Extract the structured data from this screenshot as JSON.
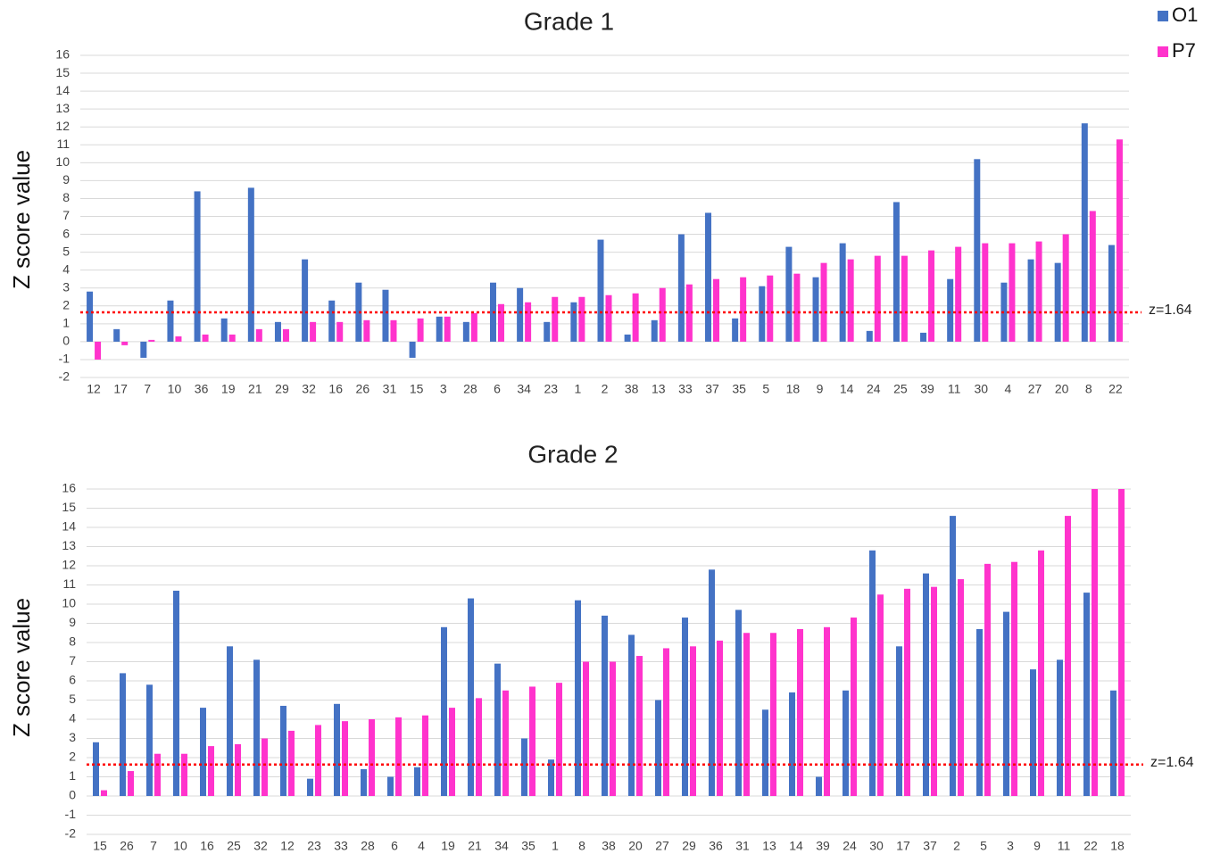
{
  "chart_data": [
    {
      "type": "bar",
      "title": "Grade 1",
      "y_label": "Z score value",
      "categories": [
        "12",
        "17",
        "7",
        "10",
        "36",
        "19",
        "21",
        "29",
        "32",
        "16",
        "26",
        "31",
        "15",
        "3",
        "28",
        "6",
        "34",
        "23",
        "1",
        "2",
        "38",
        "13",
        "33",
        "37",
        "35",
        "5",
        "18",
        "9",
        "14",
        "24",
        "25",
        "39",
        "11",
        "30",
        "4",
        "27",
        "20",
        "8",
        "22"
      ],
      "series": [
        {
          "name": "O1",
          "color": "#4472c4",
          "values": [
            2.8,
            0.7,
            -0.9,
            2.3,
            8.4,
            1.3,
            8.6,
            1.1,
            4.6,
            2.3,
            3.3,
            2.9,
            -0.9,
            1.4,
            1.1,
            3.3,
            3.0,
            1.1,
            2.2,
            5.7,
            0.4,
            1.2,
            6.0,
            7.2,
            1.3,
            3.1,
            5.3,
            3.6,
            5.5,
            0.6,
            7.8,
            0.5,
            3.5,
            10.2,
            3.3,
            4.6,
            4.4,
            12.2,
            5.4
          ]
        },
        {
          "name": "P7",
          "color": "#ff33cc",
          "values": [
            -1.0,
            -0.2,
            0.1,
            0.3,
            0.4,
            0.4,
            0.7,
            0.7,
            1.1,
            1.1,
            1.2,
            1.2,
            1.3,
            1.4,
            1.6,
            2.1,
            2.2,
            2.5,
            2.5,
            2.6,
            2.7,
            3.0,
            3.2,
            3.5,
            3.6,
            3.7,
            3.8,
            4.4,
            4.6,
            4.8,
            4.8,
            5.1,
            5.3,
            5.5,
            5.5,
            5.6,
            6.0,
            7.3,
            11.3
          ]
        }
      ],
      "ylim": [
        -2,
        16
      ],
      "yticks": [
        -2,
        -1,
        0,
        1,
        2,
        3,
        4,
        5,
        6,
        7,
        8,
        9,
        10,
        11,
        12,
        13,
        14,
        15,
        16
      ],
      "grid": true,
      "legend": "top-right",
      "threshold": 1.64,
      "threshold_label": "z=1.64",
      "threshold_color": "#ff0000"
    },
    {
      "type": "bar",
      "title": "Grade 2",
      "y_label": "Z score value",
      "categories": [
        "15",
        "26",
        "7",
        "10",
        "16",
        "25",
        "32",
        "12",
        "23",
        "33",
        "28",
        "6",
        "4",
        "19",
        "21",
        "34",
        "35",
        "1",
        "8",
        "38",
        "20",
        "27",
        "29",
        "36",
        "31",
        "13",
        "14",
        "39",
        "24",
        "30",
        "17",
        "37",
        "2",
        "5",
        "3",
        "9",
        "11",
        "22",
        "18"
      ],
      "series": [
        {
          "name": "O1",
          "color": "#4472c4",
          "values": [
            2.8,
            6.4,
            5.8,
            10.7,
            4.6,
            7.8,
            7.1,
            4.7,
            0.9,
            4.8,
            1.4,
            1.0,
            1.5,
            8.8,
            10.3,
            6.9,
            3.0,
            1.9,
            10.2,
            9.4,
            8.4,
            5.0,
            9.3,
            11.8,
            9.7,
            4.5,
            5.4,
            1.0,
            5.5,
            12.8,
            7.8,
            11.6,
            14.6,
            8.7,
            9.6,
            6.6,
            7.1,
            10.6,
            5.5
          ]
        },
        {
          "name": "P7",
          "color": "#ff33cc",
          "values": [
            0.3,
            1.3,
            2.2,
            2.2,
            2.6,
            2.7,
            3.0,
            3.4,
            3.7,
            3.9,
            4.0,
            4.1,
            4.2,
            4.6,
            5.1,
            5.5,
            5.7,
            5.9,
            7.0,
            7.0,
            7.3,
            7.7,
            7.8,
            8.1,
            8.5,
            8.5,
            8.7,
            8.8,
            9.3,
            10.5,
            10.8,
            10.9,
            11.3,
            12.1,
            12.2,
            12.8,
            14.6,
            16,
            16
          ]
        }
      ],
      "ylim": [
        -2,
        16
      ],
      "yticks": [
        -2,
        -1,
        0,
        1,
        2,
        3,
        4,
        5,
        6,
        7,
        8,
        9,
        10,
        11,
        12,
        13,
        14,
        15,
        16
      ],
      "grid": true,
      "threshold": 1.64,
      "threshold_label": "z=1.64",
      "threshold_color": "#ff0000"
    }
  ]
}
